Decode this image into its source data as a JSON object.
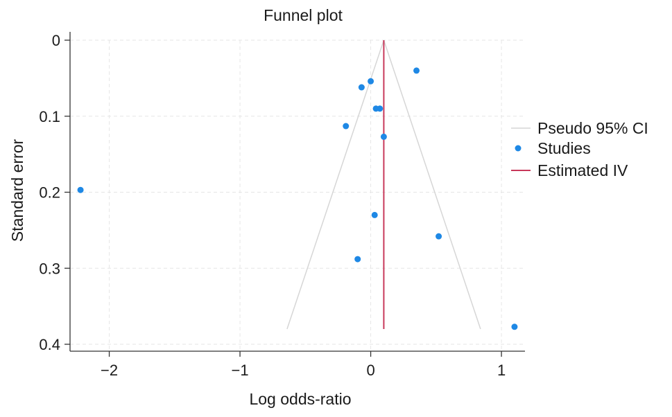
{
  "chart_data": {
    "type": "scatter",
    "title": "Funnel plot",
    "xlabel": "Log odds-ratio",
    "ylabel": "Standard error",
    "xlim": [
      -2.3,
      1.18
    ],
    "ylim": [
      0,
      0.4
    ],
    "y_reversed": true,
    "grid": true,
    "legend_position": "right",
    "x_ticks": [
      {
        "value": -2,
        "label": "−2"
      },
      {
        "value": -1,
        "label": "−1"
      },
      {
        "value": 0,
        "label": "0"
      },
      {
        "value": 1,
        "label": "1"
      }
    ],
    "y_ticks": [
      {
        "value": 0,
        "label": "0"
      },
      {
        "value": 0.1,
        "label": "0.1"
      },
      {
        "value": 0.2,
        "label": "0.2"
      },
      {
        "value": 0.3,
        "label": "0.3"
      },
      {
        "value": 0.4,
        "label": "0.4"
      }
    ],
    "series": [
      {
        "name": "Pseudo 95% CI",
        "kind": "funnel",
        "apex": [
          0.1,
          0
        ],
        "lower": [
          [
            0.1,
            0
          ],
          [
            -0.64,
            0.38
          ]
        ],
        "upper": [
          [
            0.1,
            0
          ],
          [
            0.84,
            0.38
          ]
        ],
        "color": "#d6d6d6"
      },
      {
        "name": "Studies",
        "kind": "points",
        "color": "#1e88e5",
        "points": [
          {
            "x": 0.35,
            "y": 0.04
          },
          {
            "x": 0.0,
            "y": 0.054
          },
          {
            "x": -0.07,
            "y": 0.062
          },
          {
            "x": 0.04,
            "y": 0.09
          },
          {
            "x": 0.07,
            "y": 0.09
          },
          {
            "x": -0.19,
            "y": 0.113
          },
          {
            "x": 0.1,
            "y": 0.127
          },
          {
            "x": -2.22,
            "y": 0.197
          },
          {
            "x": 0.03,
            "y": 0.23
          },
          {
            "x": 0.52,
            "y": 0.258
          },
          {
            "x": -0.1,
            "y": 0.288
          },
          {
            "x": 1.1,
            "y": 0.377
          }
        ]
      },
      {
        "name": "Estimated IV",
        "kind": "vline",
        "x": 0.1,
        "y_range": [
          0,
          0.38
        ],
        "color": "#c8385a"
      }
    ]
  }
}
